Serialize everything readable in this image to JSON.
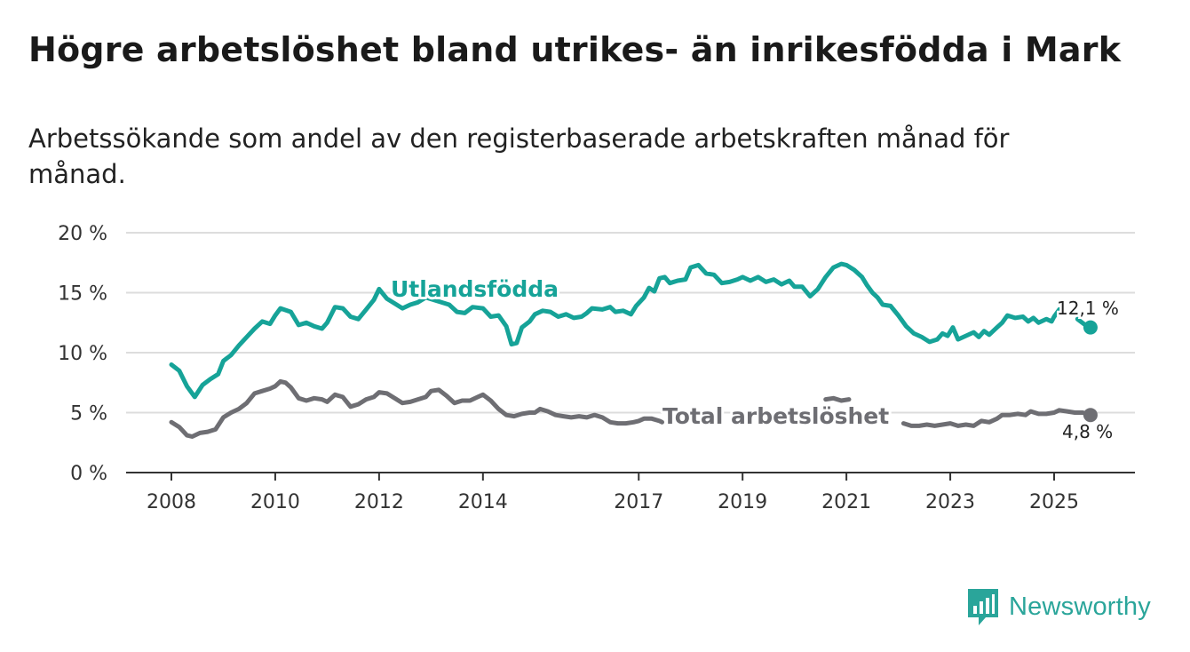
{
  "title": "Högre arbetslöshet bland utrikes- än inrikesfödda i Mark",
  "subtitle": "Arbetssökande som andel av den registerbaserade arbetskraften månad för månad.",
  "brand": {
    "name": "Newsworthy"
  },
  "colors": {
    "foreign": "#16a398",
    "total": "#6e6e73",
    "grid": "#dddddd",
    "axis": "#333333"
  },
  "chart_data": {
    "type": "line",
    "title": "Högre arbetslöshet bland utrikes- än inrikesfödda i Mark",
    "xlabel": "",
    "ylabel": "",
    "xlim": [
      2008.0,
      2026.75
    ],
    "ylim": [
      0,
      20
    ],
    "grid": true,
    "x_ticks": [
      2008,
      2010,
      2012,
      2014,
      2017,
      2019,
      2021,
      2023,
      2025
    ],
    "x_tick_labels": [
      "2008",
      "2010",
      "2012",
      "2014",
      "2017",
      "2019",
      "2021",
      "2023",
      "2025"
    ],
    "y_ticks": [
      0,
      5,
      10,
      15,
      20
    ],
    "y_tick_labels": [
      "0 %",
      "5 %",
      "10 %",
      "15 %",
      "20 %"
    ],
    "series": [
      {
        "name": "Utlandsfödda",
        "label": "Utlandsfödda",
        "end_label": "12,1 %",
        "end_value": 12.1,
        "points": [
          [
            2008.0,
            9.0
          ],
          [
            2008.15,
            8.5
          ],
          [
            2008.3,
            7.2
          ],
          [
            2008.45,
            6.3
          ],
          [
            2008.6,
            7.3
          ],
          [
            2008.75,
            7.8
          ],
          [
            2008.9,
            8.2
          ],
          [
            2009.0,
            9.3
          ],
          [
            2009.15,
            9.8
          ],
          [
            2009.3,
            10.6
          ],
          [
            2009.45,
            11.3
          ],
          [
            2009.6,
            12.0
          ],
          [
            2009.75,
            12.6
          ],
          [
            2009.9,
            12.4
          ],
          [
            2010.0,
            13.1
          ],
          [
            2010.1,
            13.7
          ],
          [
            2010.3,
            13.4
          ],
          [
            2010.45,
            12.3
          ],
          [
            2010.6,
            12.5
          ],
          [
            2010.75,
            12.2
          ],
          [
            2010.9,
            12.0
          ],
          [
            2011.0,
            12.5
          ],
          [
            2011.15,
            13.8
          ],
          [
            2011.3,
            13.7
          ],
          [
            2011.45,
            13.0
          ],
          [
            2011.6,
            12.8
          ],
          [
            2011.75,
            13.6
          ],
          [
            2011.9,
            14.4
          ],
          [
            2012.0,
            15.3
          ],
          [
            2012.15,
            14.5
          ],
          [
            2012.3,
            14.1
          ],
          [
            2012.45,
            13.7
          ],
          [
            2012.6,
            14.0
          ],
          [
            2012.75,
            14.2
          ],
          [
            2012.9,
            14.6
          ],
          [
            2013.35,
            14.0
          ],
          [
            2013.5,
            13.4
          ],
          [
            2013.65,
            13.3
          ],
          [
            2013.8,
            13.8
          ],
          [
            2014.0,
            13.7
          ],
          [
            2014.15,
            13.0
          ],
          [
            2014.3,
            13.1
          ],
          [
            2014.45,
            12.2
          ],
          [
            2014.55,
            10.7
          ],
          [
            2014.65,
            10.8
          ],
          [
            2014.75,
            12.1
          ],
          [
            2014.9,
            12.6
          ],
          [
            2015.0,
            13.2
          ],
          [
            2015.15,
            13.5
          ],
          [
            2015.3,
            13.4
          ],
          [
            2015.45,
            13.0
          ],
          [
            2015.6,
            13.2
          ],
          [
            2015.75,
            12.9
          ],
          [
            2015.9,
            13.0
          ],
          [
            2016.0,
            13.3
          ],
          [
            2016.1,
            13.7
          ],
          [
            2016.3,
            13.6
          ],
          [
            2016.45,
            13.8
          ],
          [
            2016.55,
            13.4
          ],
          [
            2016.7,
            13.5
          ],
          [
            2016.85,
            13.2
          ],
          [
            2016.95,
            13.9
          ],
          [
            2017.1,
            14.6
          ],
          [
            2017.2,
            15.4
          ],
          [
            2017.3,
            15.1
          ],
          [
            2017.4,
            16.2
          ],
          [
            2017.5,
            16.3
          ],
          [
            2017.6,
            15.8
          ],
          [
            2017.75,
            16.0
          ],
          [
            2017.9,
            16.1
          ],
          [
            2018.0,
            17.1
          ],
          [
            2018.15,
            17.3
          ],
          [
            2018.3,
            16.6
          ],
          [
            2018.45,
            16.5
          ],
          [
            2018.6,
            15.8
          ],
          [
            2018.75,
            15.9
          ],
          [
            2018.9,
            16.1
          ],
          [
            2019.0,
            16.3
          ],
          [
            2019.15,
            16.0
          ],
          [
            2019.3,
            16.3
          ],
          [
            2019.45,
            15.9
          ],
          [
            2019.6,
            16.1
          ],
          [
            2019.75,
            15.7
          ],
          [
            2019.9,
            16.0
          ],
          [
            2020.0,
            15.5
          ],
          [
            2020.15,
            15.5
          ],
          [
            2020.3,
            14.7
          ],
          [
            2020.45,
            15.3
          ],
          [
            2020.6,
            16.3
          ],
          [
            2020.75,
            17.1
          ],
          [
            2020.9,
            17.4
          ],
          [
            2021.0,
            17.3
          ],
          [
            2021.15,
            16.9
          ],
          [
            2021.3,
            16.3
          ],
          [
            2021.4,
            15.6
          ],
          [
            2021.5,
            15.0
          ],
          [
            2021.6,
            14.6
          ],
          [
            2021.7,
            14.0
          ],
          [
            2021.85,
            13.9
          ],
          [
            2022.0,
            13.1
          ],
          [
            2022.15,
            12.2
          ],
          [
            2022.3,
            11.6
          ],
          [
            2022.45,
            11.3
          ],
          [
            2022.6,
            10.9
          ],
          [
            2022.75,
            11.1
          ],
          [
            2022.85,
            11.6
          ],
          [
            2022.95,
            11.4
          ],
          [
            2023.05,
            12.1
          ],
          [
            2023.15,
            11.1
          ],
          [
            2023.3,
            11.4
          ],
          [
            2023.45,
            11.7
          ],
          [
            2023.55,
            11.3
          ],
          [
            2023.65,
            11.8
          ],
          [
            2023.75,
            11.5
          ],
          [
            2023.9,
            12.1
          ],
          [
            2024.0,
            12.5
          ],
          [
            2024.1,
            13.1
          ],
          [
            2024.25,
            12.9
          ],
          [
            2024.4,
            13.0
          ],
          [
            2024.5,
            12.6
          ],
          [
            2024.6,
            12.9
          ],
          [
            2024.7,
            12.5
          ],
          [
            2024.85,
            12.8
          ],
          [
            2024.95,
            12.6
          ],
          [
            2025.0,
            13.0
          ],
          [
            2025.1,
            13.6
          ]
        ],
        "tail": [
          [
            2025.45,
            12.8
          ],
          [
            2025.6,
            12.3
          ],
          [
            2025.7,
            12.1
          ]
        ]
      },
      {
        "name": "Total arbetslöshet",
        "label": "Total arbetslöshet",
        "end_label": "4,8 %",
        "end_value": 4.8,
        "points": [
          [
            2008.0,
            4.2
          ],
          [
            2008.15,
            3.8
          ],
          [
            2008.3,
            3.1
          ],
          [
            2008.4,
            3.0
          ],
          [
            2008.55,
            3.3
          ],
          [
            2008.7,
            3.4
          ],
          [
            2008.85,
            3.6
          ],
          [
            2009.0,
            4.6
          ],
          [
            2009.15,
            5.0
          ],
          [
            2009.3,
            5.3
          ],
          [
            2009.45,
            5.8
          ],
          [
            2009.6,
            6.6
          ],
          [
            2009.75,
            6.8
          ],
          [
            2009.9,
            7.0
          ],
          [
            2010.0,
            7.2
          ],
          [
            2010.1,
            7.6
          ],
          [
            2010.2,
            7.5
          ],
          [
            2010.3,
            7.1
          ],
          [
            2010.45,
            6.2
          ],
          [
            2010.6,
            6.0
          ],
          [
            2010.75,
            6.2
          ],
          [
            2010.9,
            6.1
          ],
          [
            2011.0,
            5.9
          ],
          [
            2011.15,
            6.5
          ],
          [
            2011.3,
            6.3
          ],
          [
            2011.45,
            5.5
          ],
          [
            2011.6,
            5.7
          ],
          [
            2011.75,
            6.1
          ],
          [
            2011.9,
            6.3
          ],
          [
            2012.0,
            6.7
          ],
          [
            2012.15,
            6.6
          ],
          [
            2012.3,
            6.2
          ],
          [
            2012.45,
            5.8
          ],
          [
            2012.6,
            5.9
          ],
          [
            2012.75,
            6.1
          ],
          [
            2012.9,
            6.3
          ],
          [
            2013.0,
            6.8
          ],
          [
            2013.15,
            6.9
          ],
          [
            2013.3,
            6.4
          ],
          [
            2013.45,
            5.8
          ],
          [
            2013.6,
            6.0
          ],
          [
            2013.75,
            6.0
          ],
          [
            2013.9,
            6.3
          ],
          [
            2014.0,
            6.5
          ],
          [
            2014.15,
            6.0
          ],
          [
            2014.3,
            5.3
          ],
          [
            2014.45,
            4.8
          ],
          [
            2014.6,
            4.7
          ],
          [
            2014.75,
            4.9
          ],
          [
            2014.9,
            5.0
          ],
          [
            2015.0,
            5.0
          ],
          [
            2015.1,
            5.3
          ],
          [
            2015.25,
            5.1
          ],
          [
            2015.4,
            4.8
          ],
          [
            2015.55,
            4.7
          ],
          [
            2015.7,
            4.6
          ],
          [
            2015.85,
            4.7
          ],
          [
            2016.0,
            4.6
          ],
          [
            2016.15,
            4.8
          ],
          [
            2016.3,
            4.6
          ],
          [
            2016.45,
            4.2
          ],
          [
            2016.6,
            4.1
          ],
          [
            2016.75,
            4.1
          ],
          [
            2016.9,
            4.2
          ],
          [
            2017.0,
            4.3
          ],
          [
            2017.1,
            4.5
          ],
          [
            2017.25,
            4.5
          ],
          [
            2017.4,
            4.3
          ],
          [
            2017.45,
            4.2
          ]
        ],
        "segments": [
          [
            [
              2020.6,
              6.1
            ],
            [
              2020.75,
              6.2
            ],
            [
              2020.9,
              6.0
            ],
            [
              2021.05,
              6.1
            ]
          ],
          [
            [
              2022.1,
              4.1
            ],
            [
              2022.25,
              3.9
            ],
            [
              2022.4,
              3.9
            ],
            [
              2022.55,
              4.0
            ],
            [
              2022.7,
              3.9
            ],
            [
              2022.85,
              4.0
            ],
            [
              2023.0,
              4.1
            ],
            [
              2023.15,
              3.9
            ],
            [
              2023.3,
              4.0
            ],
            [
              2023.45,
              3.9
            ],
            [
              2023.6,
              4.3
            ],
            [
              2023.75,
              4.2
            ],
            [
              2023.9,
              4.5
            ],
            [
              2024.0,
              4.8
            ],
            [
              2024.15,
              4.8
            ],
            [
              2024.3,
              4.9
            ],
            [
              2024.45,
              4.8
            ],
            [
              2024.55,
              5.1
            ],
            [
              2024.7,
              4.9
            ],
            [
              2024.85,
              4.9
            ],
            [
              2025.0,
              5.0
            ],
            [
              2025.1,
              5.2
            ],
            [
              2025.25,
              5.1
            ],
            [
              2025.4,
              5.0
            ],
            [
              2025.55,
              5.0
            ],
            [
              2025.7,
              4.8
            ]
          ]
        ]
      }
    ]
  }
}
